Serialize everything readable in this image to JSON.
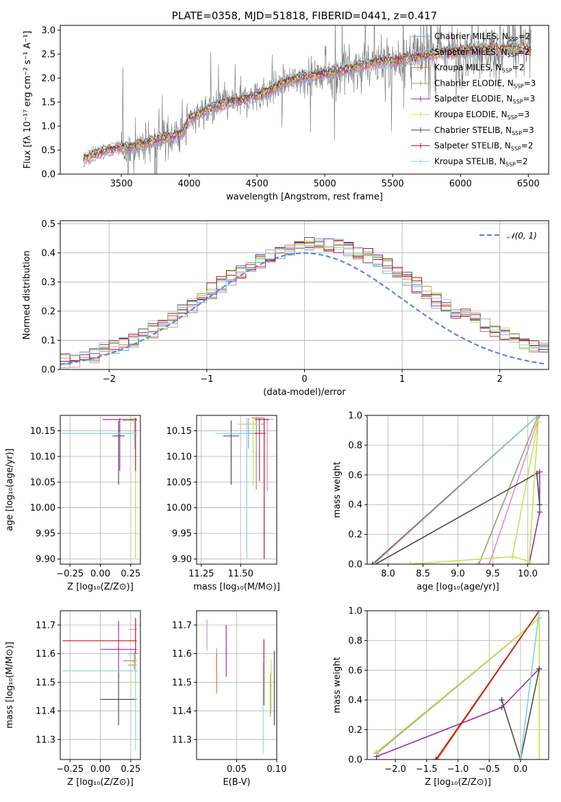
{
  "title": "PLATE=0358, MJD=51818, FIBERID=0441, z=0.417",
  "colors": {
    "Chabrier MILES": "#7aa6e8",
    "Salpeter MILES": "#e58ac8",
    "Kroupa MILES": "#e07a28",
    "Chabrier ELODIE": "#8cae82",
    "Salpeter ELODIE": "#9b2aad",
    "Kroupa ELODIE": "#c8e052",
    "Chabrier STELIB": "#4a4a4a",
    "Salpeter STELIB": "#c01818",
    "Kroupa STELIB": "#8ad8dc",
    "data": "#808080",
    "normal": "#5b86d6"
  },
  "chart_data": [
    {
      "id": "spectrum",
      "type": "line",
      "title": "PLATE=0358, MJD=51818, FIBERID=0441, z=0.417",
      "xlabel": "wavelength [Angstrom, rest frame]",
      "ylabel": "Flux [fλ 10⁻¹⁷ erg cm⁻² s⁻¹ A⁻¹]",
      "xlim": [
        3050,
        6650
      ],
      "ylim": [
        0,
        3.1
      ],
      "xticks": [
        "3500",
        "4000",
        "4500",
        "5000",
        "5500",
        "6000",
        "6500"
      ],
      "yticks": [
        "0.0",
        "0.5",
        "1.0",
        "1.5",
        "2.0",
        "2.5",
        "3.0"
      ],
      "grid": false,
      "legend_position": "top-right",
      "legend": [
        {
          "name": "Chabrier MILES",
          "nssp": "2"
        },
        {
          "name": "Salpeter MILES",
          "nssp": "2"
        },
        {
          "name": "Kroupa MILES",
          "nssp": "2"
        },
        {
          "name": "Chabrier ELODIE",
          "nssp": "3"
        },
        {
          "name": "Salpeter ELODIE",
          "nssp": "3"
        },
        {
          "name": "Kroupa ELODIE",
          "nssp": "3"
        },
        {
          "name": "Chabrier STELIB",
          "nssp": "3"
        },
        {
          "name": "Salpeter STELIB",
          "nssp": "2"
        },
        {
          "name": "Kroupa STELIB",
          "nssp": "2"
        }
      ],
      "model_continuum": {
        "x": [
          3220,
          3300,
          3400,
          3480,
          3550,
          3650,
          3750,
          3850,
          3950,
          4000,
          4100,
          4200,
          4300,
          4400,
          4500,
          4600,
          4700,
          4800,
          4900,
          5000,
          5100,
          5200,
          5300,
          5400,
          5500,
          5600,
          5700,
          5800,
          5900,
          6000,
          6100,
          6200,
          6300,
          6400,
          6500
        ],
        "y": [
          0.3,
          0.42,
          0.5,
          0.55,
          0.55,
          0.62,
          0.7,
          0.78,
          0.85,
          1.15,
          1.3,
          1.42,
          1.5,
          1.56,
          1.65,
          1.75,
          1.9,
          2.0,
          2.05,
          2.1,
          2.15,
          2.2,
          2.3,
          2.35,
          2.35,
          2.4,
          2.45,
          2.5,
          2.55,
          2.55,
          2.6,
          2.6,
          2.6,
          2.62,
          2.6
        ]
      }
    },
    {
      "id": "residuals",
      "type": "line",
      "xlabel": "(data-model)/error",
      "ylabel": "Normed distribution",
      "xlim": [
        -2.5,
        2.5
      ],
      "ylim": [
        0,
        0.51
      ],
      "xticks": [
        "−2",
        "−1",
        "0",
        "1",
        "2"
      ],
      "yticks": [
        "0.0",
        "0.1",
        "0.2",
        "0.3",
        "0.4",
        "0.5"
      ],
      "grid": true,
      "legend_position": "top-right",
      "legend_label": "𝒩(0, 1)",
      "normal_curve": {
        "mean": 0,
        "sigma": 1
      }
    },
    {
      "id": "age-vs-Z",
      "type": "scatter",
      "xlabel": "Z [log₁₀(Z/Z⊙)]",
      "ylabel": "age  [log₁₀(age/yr)]",
      "xlim": [
        -0.33,
        0.33
      ],
      "ylim": [
        9.89,
        10.18
      ],
      "xticks": [
        "−0.25",
        "0.00",
        "0.25"
      ],
      "yticks": [
        "9.90",
        "9.95",
        "10.00",
        "10.05",
        "10.10",
        "10.15"
      ],
      "grid": true,
      "points": [
        {
          "series": "Chabrier MILES",
          "x": 0.28,
          "y": 10.145,
          "xerr": [
            0.6,
            0.02
          ],
          "yerr": [
            0.03,
            0.03
          ]
        },
        {
          "series": "Salpeter MILES",
          "x": 0.29,
          "y": 10.17,
          "xerr": [
            0.1,
            0.01
          ],
          "yerr": [
            0.05,
            0.005
          ]
        },
        {
          "series": "Kroupa MILES",
          "x": 0.28,
          "y": 10.172,
          "xerr": [
            0.1,
            0.02
          ],
          "yerr": [
            0.04,
            0.003
          ]
        },
        {
          "series": "Chabrier ELODIE",
          "x": 0.29,
          "y": 10.17,
          "xerr": [
            0.05,
            0.01
          ],
          "yerr": [
            0.27,
            0.005
          ]
        },
        {
          "series": "Salpeter ELODIE",
          "x": 0.16,
          "y": 10.172,
          "xerr": [
            0.14,
            0.14
          ],
          "yerr": [
            0.1,
            0.003
          ]
        },
        {
          "series": "Kroupa ELODIE",
          "x": 0.29,
          "y": 10.17,
          "xerr": [
            0.08,
            0.01
          ],
          "yerr": [
            0.27,
            0.005
          ]
        },
        {
          "series": "Chabrier STELIB",
          "x": 0.15,
          "y": 10.14,
          "xerr": [
            0.05,
            0.05
          ],
          "yerr": [
            0.095,
            0.03
          ]
        },
        {
          "series": "Salpeter STELIB",
          "x": 0.29,
          "y": 10.172,
          "xerr": [
            0.05,
            0.01
          ],
          "yerr": [
            0.1,
            0.003
          ]
        },
        {
          "series": "Kroupa STELIB",
          "x": 0.28,
          "y": 10.145,
          "xerr": [
            0.6,
            0.02
          ],
          "yerr": [
            0.03,
            0.03
          ]
        }
      ]
    },
    {
      "id": "age-vs-mass",
      "type": "scatter",
      "xlabel": "mass [log₁₀(M/M⊙)]",
      "ylabel": "",
      "xlim": [
        11.22,
        11.73
      ],
      "ylim": [
        9.89,
        10.18
      ],
      "xticks": [
        "11.25",
        "11.50"
      ],
      "yticks": [
        "9.90",
        "9.95",
        "10.00",
        "10.05",
        "10.10",
        "10.15"
      ],
      "grid": true,
      "points": [
        {
          "series": "Chabrier MILES",
          "x": 11.55,
          "y": 10.145,
          "xerr": [
            0.15,
            0.05
          ],
          "yerr": [
            0.03,
            0.03
          ]
        },
        {
          "series": "Salpeter MILES",
          "x": 11.67,
          "y": 10.172,
          "xerr": [
            0.06,
            0.04
          ],
          "yerr": [
            0.14,
            0.003
          ]
        },
        {
          "series": "Kroupa MILES",
          "x": 11.6,
          "y": 10.175,
          "xerr": [
            0.03,
            0.05
          ],
          "yerr": [
            0.14,
            0.002
          ]
        },
        {
          "series": "Chabrier ELODIE",
          "x": 11.6,
          "y": 10.163,
          "xerr": [
            0.1,
            0.05
          ],
          "yerr": [
            0.12,
            0.01
          ]
        },
        {
          "series": "Salpeter ELODIE",
          "x": 11.62,
          "y": 10.172,
          "xerr": [
            0.03,
            0.06
          ],
          "yerr": [
            0.12,
            0.003
          ]
        },
        {
          "series": "Kroupa ELODIE",
          "x": 11.58,
          "y": 10.163,
          "xerr": [
            0.1,
            0.05
          ],
          "yerr": [
            0.12,
            0.01
          ]
        },
        {
          "series": "Chabrier STELIB",
          "x": 11.44,
          "y": 10.14,
          "xerr": [
            0.05,
            0.05
          ],
          "yerr": [
            0.095,
            0.03
          ]
        },
        {
          "series": "Salpeter STELIB",
          "x": 11.65,
          "y": 10.145,
          "xerr": [
            0.1,
            0.01
          ],
          "yerr": [
            0.245,
            0.03
          ]
        },
        {
          "series": "Kroupa STELIB",
          "x": 11.54,
          "y": 10.145,
          "xerr": [
            0.2,
            0.05
          ],
          "yerr": [
            0.245,
            0.03
          ]
        }
      ]
    },
    {
      "id": "massweight-vs-age",
      "type": "line",
      "xlabel": "age  [log₁₀(age/yr)]",
      "ylabel": "mass weight",
      "xlim": [
        7.7,
        10.3
      ],
      "ylim": [
        0,
        1.0
      ],
      "xticks": [
        "8.0",
        "8.5",
        "9.0",
        "9.5",
        "10.0"
      ],
      "yticks": [
        "0.0",
        "0.2",
        "0.4",
        "0.6",
        "0.8",
        "1.0"
      ],
      "grid": true,
      "series": [
        {
          "name": "Chabrier MILES",
          "x": [
            7.78,
            10.15
          ],
          "y": [
            0.0,
            1.0
          ]
        },
        {
          "name": "Salpeter MILES",
          "x": [
            9.45,
            10.17
          ],
          "y": [
            0.0,
            1.0
          ]
        },
        {
          "name": "Kroupa MILES",
          "x": [
            9.3,
            10.15
          ],
          "y": [
            0.0,
            1.0
          ]
        },
        {
          "name": "Chabrier ELODIE",
          "x": [
            9.3,
            10.15
          ],
          "y": [
            0.0,
            1.0
          ]
        },
        {
          "name": "Salpeter ELODIE",
          "x": [
            10.02,
            10.17,
            10.17
          ],
          "y": [
            0.0,
            0.35,
            0.62
          ]
        },
        {
          "name": "Kroupa ELODIE",
          "x": [
            8.32,
            9.78,
            10.15
          ],
          "y": [
            0.0,
            0.05,
            0.96
          ]
        },
        {
          "name": "Chabrier STELIB",
          "x": [
            7.82,
            10.13,
            10.17
          ],
          "y": [
            0.0,
            0.61,
            0.4
          ]
        },
        {
          "name": "Salpeter STELIB",
          "x": [
            7.78,
            10.15
          ],
          "y": [
            0.0,
            1.0
          ]
        },
        {
          "name": "Kroupa STELIB",
          "x": [
            7.8,
            10.15
          ],
          "y": [
            0.0,
            1.0
          ]
        }
      ],
      "extra": {
        "name": "Kroupa ELODIE",
        "x": [
          9.78,
          10.02,
          10.15
        ],
        "y": [
          0.05,
          0.02,
          0.96
        ]
      }
    },
    {
      "id": "mass-vs-Z",
      "type": "scatter",
      "xlabel": "Z [log₁₀(Z/Z⊙)]",
      "ylabel": "mass [log₁₀(M/M⊙)]",
      "xlim": [
        -0.33,
        0.33
      ],
      "ylim": [
        11.23,
        11.75
      ],
      "xticks": [
        "−0.25",
        "0.00",
        "0.25"
      ],
      "yticks": [
        "11.3",
        "11.4",
        "11.5",
        "11.6",
        "11.7"
      ],
      "grid": true,
      "points": [
        {
          "series": "Chabrier MILES",
          "x": 0.29,
          "y": 11.6,
          "xerr": [
            0.06,
            0.02
          ],
          "yerr": [
            0.05,
            0.05
          ]
        },
        {
          "series": "Salpeter MILES",
          "x": 0.29,
          "y": 11.685,
          "xerr": [
            0.06,
            0.01
          ],
          "yerr": [
            0.04,
            0.04
          ]
        },
        {
          "series": "Kroupa MILES",
          "x": 0.28,
          "y": 11.575,
          "xerr": [
            0.09,
            0.02
          ],
          "yerr": [
            0.03,
            0.03
          ]
        },
        {
          "series": "Chabrier ELODIE",
          "x": 0.29,
          "y": 11.56,
          "xerr": [
            0.06,
            0.01
          ],
          "yerr": [
            0.06,
            0.06
          ]
        },
        {
          "series": "Salpeter ELODIE",
          "x": 0.15,
          "y": 11.615,
          "xerr": [
            0.15,
            0.15
          ],
          "yerr": [
            0.1,
            0.1
          ]
        },
        {
          "series": "Kroupa ELODIE",
          "x": 0.29,
          "y": 11.5,
          "xerr": [
            0.06,
            0.01
          ],
          "yerr": [
            0.1,
            0.1
          ]
        },
        {
          "series": "Chabrier STELIB",
          "x": 0.15,
          "y": 11.44,
          "xerr": [
            0.15,
            0.15
          ],
          "yerr": [
            0.09,
            0.09
          ]
        },
        {
          "series": "Salpeter STELIB",
          "x": 0.29,
          "y": 11.645,
          "xerr": [
            0.6,
            0.01
          ],
          "yerr": [
            0.08,
            0.08
          ]
        },
        {
          "series": "Kroupa STELIB",
          "x": 0.29,
          "y": 11.54,
          "xerr": [
            0.6,
            0.02
          ],
          "yerr": [
            0.28,
            0.06
          ]
        }
      ]
    },
    {
      "id": "mass-vs-ebv",
      "type": "scatter",
      "xlabel": "E(B-V)",
      "ylabel": "",
      "xlim": [
        0.0,
        0.1
      ],
      "ylim": [
        11.23,
        11.75
      ],
      "xticks": [
        "0.05",
        "0.10"
      ],
      "yticks": [
        "11.3",
        "11.4",
        "11.5",
        "11.6",
        "11.7"
      ],
      "grid": true,
      "points": [
        {
          "series": "Chabrier MILES",
          "x": 0.025,
          "y": 11.58,
          "yerr": [
            0.05,
            0.04
          ]
        },
        {
          "series": "Salpeter MILES",
          "x": 0.013,
          "y": 11.68,
          "yerr": [
            0.07,
            0.04
          ]
        },
        {
          "series": "Kroupa MILES",
          "x": 0.025,
          "y": 11.54,
          "yerr": [
            0.08,
            0.06
          ]
        },
        {
          "series": "Chabrier ELODIE",
          "x": 0.092,
          "y": 11.48,
          "yerr": [
            0.1,
            0.05
          ]
        },
        {
          "series": "Salpeter ELODIE",
          "x": 0.037,
          "y": 11.61,
          "yerr": [
            0.09,
            0.09
          ]
        },
        {
          "series": "Kroupa ELODIE",
          "x": 0.093,
          "y": 11.48,
          "yerr": [
            0.09,
            0.1
          ]
        },
        {
          "series": "Chabrier STELIB",
          "x": 0.097,
          "y": 11.48,
          "yerr": [
            0.13,
            0.13
          ]
        },
        {
          "series": "Salpeter STELIB",
          "x": 0.084,
          "y": 11.57,
          "yerr": [
            0.15,
            0.08
          ]
        },
        {
          "series": "Kroupa STELIB",
          "x": 0.083,
          "y": 11.42,
          "yerr": [
            0.17,
            0.15
          ]
        }
      ]
    },
    {
      "id": "massweight-vs-Z",
      "type": "line",
      "xlabel": "Z [log₁₀(Z/Z⊙)]",
      "ylabel": "mass weight",
      "xlim": [
        -2.45,
        0.45
      ],
      "ylim": [
        0,
        1.0
      ],
      "xticks": [
        "−2.0",
        "−1.5",
        "−1.0",
        "−0.5",
        "0.0"
      ],
      "yticks": [
        "0.0",
        "0.2",
        "0.4",
        "0.6",
        "0.8",
        "1.0"
      ],
      "grid": true,
      "series": [
        {
          "name": "Chabrier MILES",
          "x": [
            0.0,
            0.3
          ],
          "y": [
            0.0,
            1.0
          ]
        },
        {
          "name": "Salpeter MILES",
          "x": [
            -1.35,
            0.3
          ],
          "y": [
            0.0,
            1.0
          ]
        },
        {
          "name": "Kroupa MILES",
          "x": [
            -1.33,
            0.3
          ],
          "y": [
            0.0,
            1.0
          ]
        },
        {
          "name": "Chabrier ELODIE",
          "x": [
            -2.3,
            0.3
          ],
          "y": [
            0.04,
            0.95
          ]
        },
        {
          "name": "Salpeter ELODIE",
          "x": [
            -2.3,
            -0.3,
            0.3
          ],
          "y": [
            0.02,
            0.35,
            0.61
          ]
        },
        {
          "name": "Kroupa ELODIE",
          "x": [
            -2.3,
            0.3,
            0.3
          ],
          "y": [
            0.05,
            0.95,
            0.0
          ]
        },
        {
          "name": "Chabrier STELIB",
          "x": [
            -0.3,
            0.0,
            0.3
          ],
          "y": [
            0.4,
            0.0,
            0.61
          ]
        },
        {
          "name": "Salpeter STELIB",
          "x": [
            -1.35,
            0.3
          ],
          "y": [
            0.0,
            1.0
          ]
        },
        {
          "name": "Kroupa STELIB",
          "x": [
            0.0,
            0.3
          ],
          "y": [
            0.0,
            1.0
          ]
        }
      ]
    }
  ]
}
